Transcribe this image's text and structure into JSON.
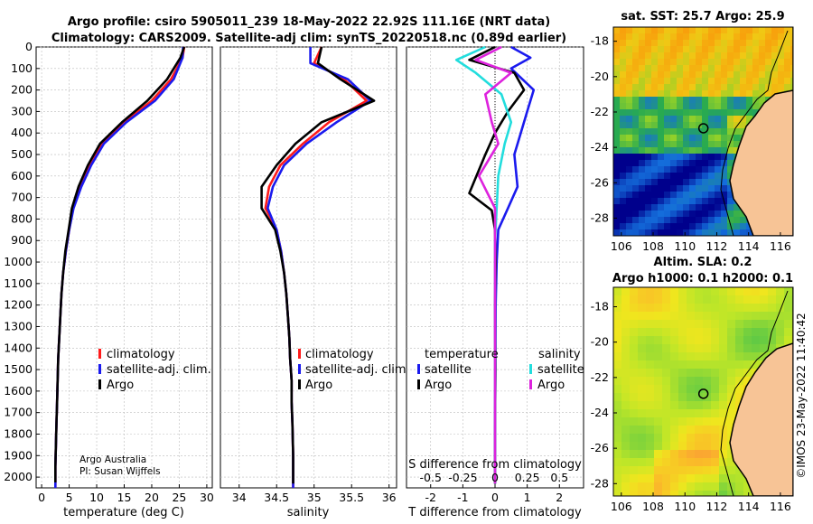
{
  "header": {
    "line1": "Argo profile: csiro 5905011_239 18-May-2022 22.92S 111.16E (NRT data)",
    "line2": "Climatology: CARS2009. Satellite-adj clim: synTS_20220518.nc (0.89d earlier)"
  },
  "credit": {
    "line1": "Argo Australia",
    "line2": "PI: Susan Wijffels",
    "imos": "©IMOS 23-May-2022 11:40:42"
  },
  "colors": {
    "climatology": "#ff1a1a",
    "satellite_adj": "#1a1aee",
    "argo": "#000000",
    "temp_satellite": "#1a1aee",
    "temp_argo": "#000000",
    "sal_satellite": "#22dddd",
    "sal_argo": "#dd22dd",
    "land": "#f7c496"
  },
  "chart_data": [
    {
      "type": "line",
      "id": "temperature",
      "xlabel": "temperature (deg C)",
      "ylabel": "",
      "xlim": [
        -1,
        31
      ],
      "ylim": [
        2050,
        0
      ],
      "xticks": [
        0,
        5,
        10,
        15,
        20,
        25,
        30
      ],
      "yticks": [
        0,
        100,
        200,
        300,
        400,
        500,
        600,
        700,
        800,
        900,
        1000,
        1100,
        1200,
        1300,
        1400,
        1500,
        1600,
        1700,
        1800,
        1900,
        2000
      ],
      "legend": [
        "climatology",
        "satellite-adj. clim.",
        "Argo"
      ],
      "series": [
        {
          "name": "climatology",
          "color": "#ff1a1a",
          "x": [
            25.9,
            25.6,
            23.5,
            20.0,
            15.0,
            11.0,
            8.8,
            7.0,
            5.7,
            5.0,
            4.4,
            3.9,
            3.6,
            3.4,
            3.2,
            3.0,
            2.9,
            2.8,
            2.7,
            2.6,
            2.5,
            2.5
          ],
          "y": [
            0,
            50,
            150,
            250,
            350,
            450,
            550,
            650,
            750,
            850,
            950,
            1050,
            1150,
            1250,
            1350,
            1450,
            1550,
            1650,
            1750,
            1850,
            1950,
            2050
          ]
        },
        {
          "name": "satellite-adj. clim.",
          "color": "#1a1aee",
          "x": [
            25.7,
            25.6,
            24.0,
            20.6,
            15.4,
            11.3,
            9.0,
            7.2,
            5.8,
            5.0,
            4.4,
            3.9,
            3.6,
            3.4,
            3.2,
            3.0,
            2.9,
            2.8,
            2.7,
            2.6,
            2.5,
            2.5
          ],
          "y": [
            0,
            50,
            150,
            250,
            350,
            450,
            550,
            650,
            750,
            850,
            950,
            1050,
            1150,
            1250,
            1350,
            1450,
            1550,
            1650,
            1750,
            1850,
            1950,
            2050
          ]
        },
        {
          "name": "Argo",
          "color": "#000000",
          "x": [
            25.9,
            25.2,
            22.8,
            19.2,
            14.6,
            10.6,
            8.4,
            6.7,
            5.5,
            4.9,
            4.3,
            3.9,
            3.6,
            3.4,
            3.2,
            3.0,
            2.9,
            2.8,
            2.7,
            2.6,
            2.5,
            2.5
          ],
          "y": [
            0,
            50,
            150,
            250,
            350,
            450,
            550,
            650,
            750,
            850,
            950,
            1050,
            1150,
            1250,
            1350,
            1450,
            1550,
            1650,
            1750,
            1850,
            1950,
            2025
          ]
        }
      ]
    },
    {
      "type": "line",
      "id": "salinity",
      "xlabel": "salinity",
      "ylabel": "",
      "xlim": [
        33.75,
        36.1
      ],
      "ylim": [
        2050,
        0
      ],
      "xticks": [
        34,
        34.5,
        35,
        35.5,
        36
      ],
      "legend": [
        "climatology",
        "satellite-adj. clim.",
        "Argo"
      ],
      "series": [
        {
          "name": "climatology",
          "color": "#ff1a1a",
          "x": [
            35.1,
            35.0,
            35.4,
            35.7,
            35.2,
            34.85,
            34.55,
            34.4,
            34.35,
            34.5,
            34.56,
            34.6,
            34.63,
            34.65,
            34.67,
            34.68,
            34.7,
            34.7,
            34.71,
            34.72,
            34.72
          ],
          "y": [
            0,
            75,
            150,
            250,
            350,
            450,
            550,
            650,
            750,
            850,
            950,
            1050,
            1150,
            1250,
            1350,
            1450,
            1550,
            1650,
            1750,
            1900,
            2050
          ]
        },
        {
          "name": "satellite-adj. clim.",
          "color": "#1a1aee",
          "x": [
            34.95,
            34.95,
            35.45,
            35.75,
            35.3,
            34.9,
            34.6,
            34.45,
            34.38,
            34.5,
            34.56,
            34.6,
            34.63,
            34.65,
            34.67,
            34.68,
            34.7,
            34.7,
            34.71,
            34.72,
            34.72
          ],
          "y": [
            0,
            75,
            150,
            250,
            350,
            450,
            550,
            650,
            750,
            850,
            950,
            1050,
            1150,
            1250,
            1350,
            1450,
            1550,
            1650,
            1750,
            1900,
            2050
          ]
        },
        {
          "name": "Argo",
          "color": "#000000",
          "x": [
            35.1,
            35.05,
            35.35,
            35.8,
            35.1,
            34.75,
            34.5,
            34.3,
            34.3,
            34.48,
            34.55,
            34.6,
            34.63,
            34.65,
            34.67,
            34.68,
            34.7,
            34.7,
            34.71,
            34.72,
            34.72
          ],
          "y": [
            0,
            75,
            150,
            250,
            350,
            450,
            550,
            650,
            750,
            850,
            950,
            1050,
            1150,
            1250,
            1350,
            1450,
            1550,
            1650,
            1750,
            1900,
            2030
          ]
        }
      ]
    },
    {
      "type": "line",
      "id": "difference",
      "xlabel": "T difference from climatology",
      "xlabel_top": "S difference from climatology",
      "xlim": [
        -2.75,
        2.75
      ],
      "ylim": [
        2050,
        0
      ],
      "xticks": [
        -2,
        -1,
        0,
        1,
        2
      ],
      "xticks_top": [
        "-0.5",
        "-0.25",
        "0",
        "0.25",
        "0.5"
      ],
      "legend_titles": [
        "temperature",
        "salinity"
      ],
      "legend_left": [
        "satellite",
        "Argo"
      ],
      "legend_right": [
        "satellite",
        "Argo"
      ],
      "series": [
        {
          "name": "temperature satellite",
          "color": "#1a1aee",
          "x": [
            0.5,
            1.1,
            0.5,
            1.2,
            1.0,
            0.8,
            0.6,
            0.7,
            0.4,
            0.1,
            0.05,
            0.02,
            0.01,
            0.0,
            0.0
          ],
          "y": [
            0,
            50,
            100,
            200,
            300,
            400,
            500,
            650,
            750,
            850,
            1000,
            1200,
            1500,
            1800,
            2030
          ]
        },
        {
          "name": "temperature Argo",
          "color": "#000000",
          "x": [
            0.0,
            -0.8,
            0.6,
            0.9,
            0.4,
            0.0,
            -0.3,
            -0.8,
            -0.1,
            0.0,
            0.02,
            0.0,
            0.01,
            0.0,
            0.0
          ],
          "y": [
            0,
            60,
            120,
            200,
            300,
            400,
            500,
            680,
            760,
            850,
            1000,
            1200,
            1500,
            1800,
            2030
          ]
        },
        {
          "name": "salinity satellite",
          "color": "#22dddd",
          "x": [
            -0.3,
            -1.2,
            -0.6,
            0.2,
            0.5,
            0.3,
            0.1,
            0.05,
            0.0,
            0.0,
            0.0,
            0.0,
            0.0
          ],
          "y": [
            0,
            60,
            120,
            220,
            350,
            450,
            600,
            750,
            900,
            1100,
            1400,
            1700,
            2030
          ]
        },
        {
          "name": "salinity Argo",
          "color": "#dd22dd",
          "x": [
            0.2,
            -0.6,
            0.5,
            -0.3,
            -0.1,
            0.1,
            -0.5,
            0.0,
            0.0,
            0.0,
            0.0,
            0.0,
            0.0
          ],
          "y": [
            0,
            60,
            120,
            220,
            350,
            450,
            600,
            750,
            900,
            1100,
            1400,
            1700,
            2030
          ]
        }
      ]
    },
    {
      "type": "heatmap",
      "id": "sst_map",
      "title": "sat. SST: 25.7 Argo: 25.9",
      "xticks": [
        106,
        108,
        110,
        112,
        114,
        116
      ],
      "yticks": [
        -18,
        -20,
        -22,
        -24,
        -26,
        -28
      ],
      "xlim": [
        105.5,
        116.8
      ],
      "ylim": [
        -29,
        -17.2
      ],
      "marker": {
        "lon": 111.16,
        "lat": -22.92
      }
    },
    {
      "type": "heatmap",
      "id": "sla_map",
      "title_line1": "Altim. SLA: 0.2",
      "title_line2": "Argo h1000: 0.1 h2000: 0.1",
      "xticks": [
        106,
        108,
        110,
        112,
        114,
        116
      ],
      "yticks": [
        -18,
        -20,
        -22,
        -24,
        -26,
        -28
      ],
      "xlim": [
        105.5,
        116.8
      ],
      "ylim": [
        -28.7,
        -16.9
      ],
      "marker": {
        "lon": 111.16,
        "lat": -22.92
      }
    }
  ]
}
